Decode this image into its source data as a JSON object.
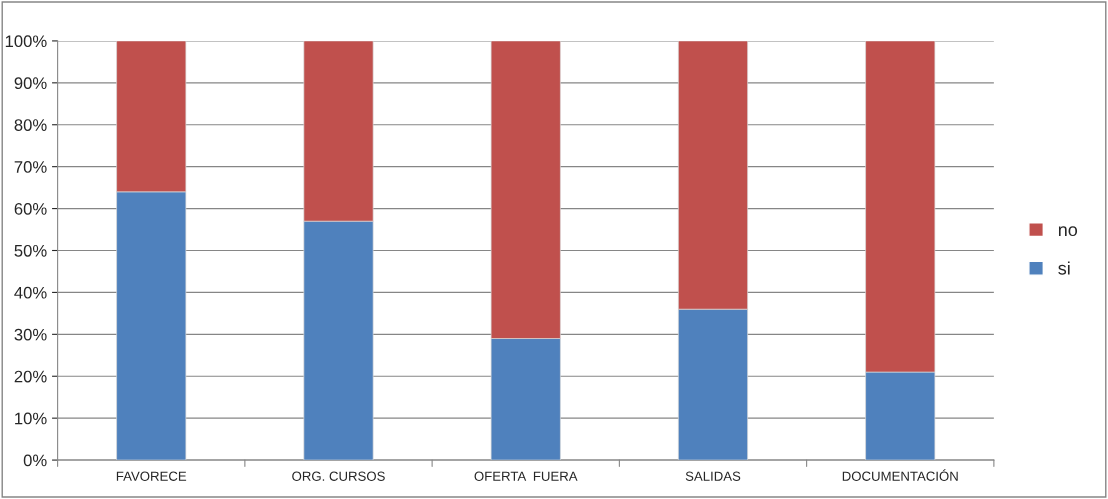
{
  "chart_data": {
    "type": "bar",
    "stacked": true,
    "categories": [
      "FAVORECE",
      "ORG. CURSOS",
      "OFERTA  FUERA",
      "SALIDAS",
      "DOCUMENTACIÓN"
    ],
    "series": [
      {
        "name": "si",
        "color": "#4f81bd",
        "values": [
          64,
          57,
          29,
          36,
          21
        ]
      },
      {
        "name": "no",
        "color": "#c0504d",
        "values": [
          36,
          43,
          71,
          64,
          79
        ]
      }
    ],
    "ylim": [
      0,
      100
    ],
    "yticks": [
      {
        "value": 0,
        "label": "0%"
      },
      {
        "value": 10,
        "label": "10%"
      },
      {
        "value": 20,
        "label": "20%"
      },
      {
        "value": 30,
        "label": "30%"
      },
      {
        "value": 40,
        "label": "40%"
      },
      {
        "value": 50,
        "label": "50%"
      },
      {
        "value": 60,
        "label": "60%"
      },
      {
        "value": 70,
        "label": "70%"
      },
      {
        "value": 80,
        "label": "80%"
      },
      {
        "value": 90,
        "label": "90%"
      },
      {
        "value": 100,
        "label": "100%"
      }
    ],
    "grid": "y",
    "legend": "right"
  }
}
